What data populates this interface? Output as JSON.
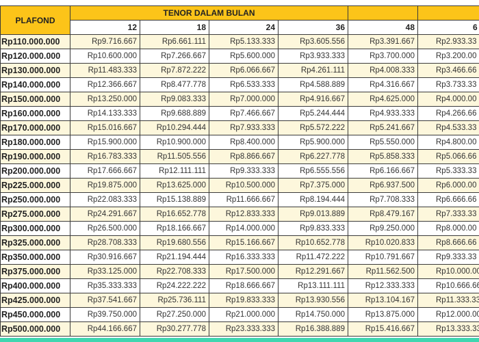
{
  "header": {
    "plafond": "PLAFOND",
    "tenor": "TENOR DALAM BULAN"
  },
  "tenors": [
    "12",
    "18",
    "24",
    "36",
    "48",
    "6"
  ],
  "rows": [
    {
      "plafond": "Rp110.000.000",
      "v": [
        "Rp9.716.667",
        "Rp6.661.111",
        "Rp5.133.333",
        "Rp3.605.556",
        "Rp3.391.667",
        "Rp2.933.33"
      ]
    },
    {
      "plafond": "Rp120.000.000",
      "v": [
        "Rp10.600.000",
        "Rp7.266.667",
        "Rp5.600.000",
        "Rp3.933.333",
        "Rp3.700.000",
        "Rp3.200.00"
      ]
    },
    {
      "plafond": "Rp130.000.000",
      "v": [
        "Rp11.483.333",
        "Rp7.872.222",
        "Rp6.066.667",
        "Rp4.261.111",
        "Rp4.008.333",
        "Rp3.466.66"
      ]
    },
    {
      "plafond": "Rp140.000.000",
      "v": [
        "Rp12.366.667",
        "Rp8.477.778",
        "Rp6.533.333",
        "Rp4.588.889",
        "Rp4.316.667",
        "Rp3.733.33"
      ]
    },
    {
      "plafond": "Rp150.000.000",
      "v": [
        "Rp13.250.000",
        "Rp9.083.333",
        "Rp7.000.000",
        "Rp4.916.667",
        "Rp4.625.000",
        "Rp4.000.00"
      ]
    },
    {
      "plafond": "Rp160.000.000",
      "v": [
        "Rp14.133.333",
        "Rp9.688.889",
        "Rp7.466.667",
        "Rp5.244.444",
        "Rp4.933.333",
        "Rp4.266.66"
      ]
    },
    {
      "plafond": "Rp170.000.000",
      "v": [
        "Rp15.016.667",
        "Rp10.294.444",
        "Rp7.933.333",
        "Rp5.572.222",
        "Rp5.241.667",
        "Rp4.533.33"
      ]
    },
    {
      "plafond": "Rp180.000.000",
      "v": [
        "Rp15.900.000",
        "Rp10.900.000",
        "Rp8.400.000",
        "Rp5.900.000",
        "Rp5.550.000",
        "Rp4.800.00"
      ]
    },
    {
      "plafond": "Rp190.000.000",
      "v": [
        "Rp16.783.333",
        "Rp11.505.556",
        "Rp8.866.667",
        "Rp6.227.778",
        "Rp5.858.333",
        "Rp5.066.66"
      ]
    },
    {
      "plafond": "Rp200.000.000",
      "v": [
        "Rp17.666.667",
        "Rp12.111.111",
        "Rp9.333.333",
        "Rp6.555.556",
        "Rp6.166.667",
        "Rp5.333.33"
      ]
    },
    {
      "plafond": "Rp225.000.000",
      "v": [
        "Rp19.875.000",
        "Rp13.625.000",
        "Rp10.500.000",
        "Rp7.375.000",
        "Rp6.937.500",
        "Rp6.000.00"
      ]
    },
    {
      "plafond": "Rp250.000.000",
      "v": [
        "Rp22.083.333",
        "Rp15.138.889",
        "Rp11.666.667",
        "Rp8.194.444",
        "Rp7.708.333",
        "Rp6.666.66"
      ]
    },
    {
      "plafond": "Rp275.000.000",
      "v": [
        "Rp24.291.667",
        "Rp16.652.778",
        "Rp12.833.333",
        "Rp9.013.889",
        "Rp8.479.167",
        "Rp7.333.33"
      ]
    },
    {
      "plafond": "Rp300.000.000",
      "v": [
        "Rp26.500.000",
        "Rp18.166.667",
        "Rp14.000.000",
        "Rp9.833.333",
        "Rp9.250.000",
        "Rp8.000.00"
      ]
    },
    {
      "plafond": "Rp325.000.000",
      "v": [
        "Rp28.708.333",
        "Rp19.680.556",
        "Rp15.166.667",
        "Rp10.652.778",
        "Rp10.020.833",
        "Rp8.666.66"
      ]
    },
    {
      "plafond": "Rp350.000.000",
      "v": [
        "Rp30.916.667",
        "Rp21.194.444",
        "Rp16.333.333",
        "Rp11.472.222",
        "Rp10.791.667",
        "Rp9.333.33"
      ]
    },
    {
      "plafond": "Rp375.000.000",
      "v": [
        "Rp33.125.000",
        "Rp22.708.333",
        "Rp17.500.000",
        "Rp12.291.667",
        "Rp11.562.500",
        "Rp10.000.00"
      ]
    },
    {
      "plafond": "Rp400.000.000",
      "v": [
        "Rp35.333.333",
        "Rp24.222.222",
        "Rp18.666.667",
        "Rp13.111.111",
        "Rp12.333.333",
        "Rp10.666.66"
      ]
    },
    {
      "plafond": "Rp425.000.000",
      "v": [
        "Rp37.541.667",
        "Rp25.736.111",
        "Rp19.833.333",
        "Rp13.930.556",
        "Rp13.104.167",
        "Rp11.333.33"
      ]
    },
    {
      "plafond": "Rp450.000.000",
      "v": [
        "Rp39.750.000",
        "Rp27.250.000",
        "Rp21.000.000",
        "Rp14.750.000",
        "Rp13.875.000",
        "Rp12.000.00"
      ]
    },
    {
      "plafond": "Rp500.000.000",
      "v": [
        "Rp44.166.667",
        "Rp30.277.778",
        "Rp23.333.333",
        "Rp16.388.889",
        "Rp15.416.667",
        "Rp13.333.33"
      ]
    }
  ],
  "colors": {
    "header": "#fcc419",
    "alt_row": "#fdf7dc",
    "band": "#40d6b0"
  }
}
